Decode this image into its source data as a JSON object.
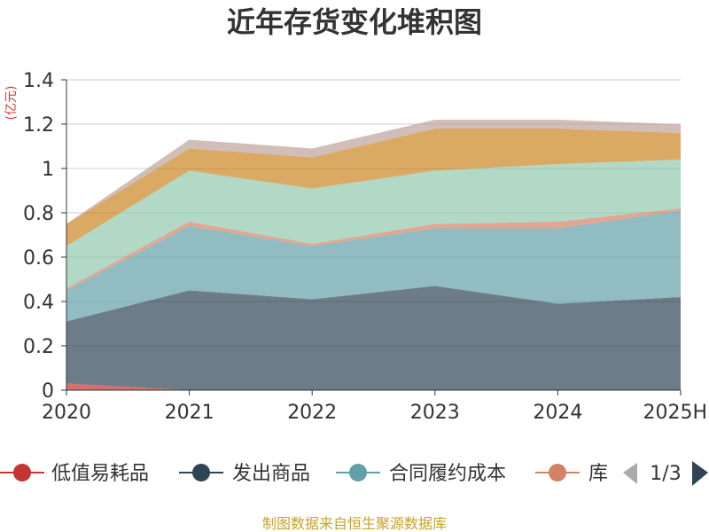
{
  "chart_data": {
    "type": "area",
    "stacked": true,
    "title": "近年存货变化堆积图",
    "unit_label": "(亿元)",
    "x": [
      "2020",
      "2021",
      "2022",
      "2023",
      "2024",
      "2025H"
    ],
    "ylim": [
      0,
      1.4
    ],
    "yticks": [
      0,
      0.2,
      0.4,
      0.6,
      0.8,
      1,
      1.2,
      1.4
    ],
    "ytick_labels": [
      "0",
      "0.2",
      "0.4",
      "0.6",
      "0.8",
      "1",
      "1.2",
      "1.4"
    ],
    "grid": true,
    "series": [
      {
        "name": "低值易耗品",
        "color": "#c23531",
        "values": [
          0.03,
          0.0,
          0.0,
          0.0,
          0.0,
          0.0
        ]
      },
      {
        "name": "发出商品",
        "color": "#2f4554",
        "values": [
          0.28,
          0.45,
          0.41,
          0.47,
          0.39,
          0.42
        ]
      },
      {
        "name": "合同履约成本",
        "color": "#61a0a8",
        "values": [
          0.14,
          0.29,
          0.24,
          0.26,
          0.34,
          0.39
        ]
      },
      {
        "name": "库存商品",
        "color": "#d48265",
        "values": [
          0.01,
          0.02,
          0.01,
          0.02,
          0.03,
          0.01
        ]
      },
      {
        "name": "",
        "color": "#91c7ae",
        "values": [
          0.19,
          0.23,
          0.25,
          0.24,
          0.26,
          0.22
        ]
      },
      {
        "name": "",
        "color": "#ca8622",
        "values": [
          0.1,
          0.1,
          0.14,
          0.19,
          0.16,
          0.12
        ]
      },
      {
        "name": "",
        "color": "#bda29a",
        "values": [
          0.0,
          0.04,
          0.04,
          0.04,
          0.04,
          0.04
        ]
      }
    ],
    "legend": {
      "position": "bottom",
      "visible_items": [
        "低值易耗品",
        "发出商品",
        "合同履约成本",
        "库"
      ],
      "page": "1/3"
    },
    "source": "制图数据来自恒生聚源数据库"
  }
}
